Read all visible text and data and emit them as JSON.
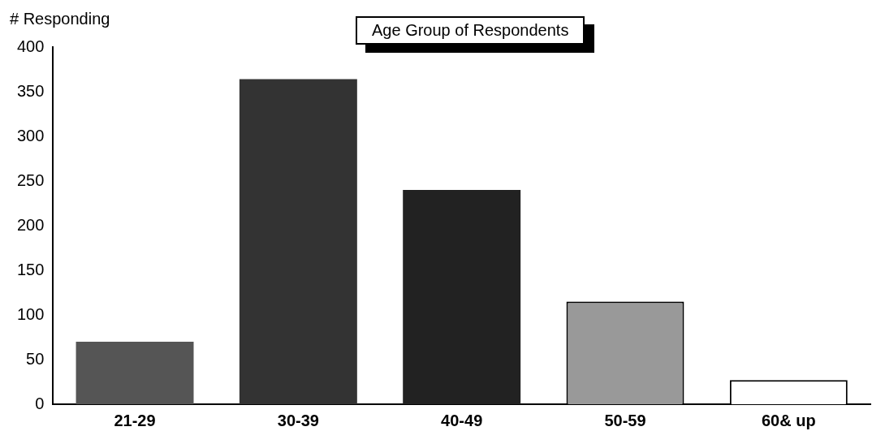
{
  "chart_data": {
    "type": "bar",
    "title": "Age Group of Respondents",
    "ylabel": "# Responding",
    "categories": [
      "21-29",
      "30-39",
      "40-49",
      "50-59",
      "60& up"
    ],
    "values": [
      70,
      364,
      240,
      115,
      27
    ],
    "colors": [
      "#555555",
      "#333333",
      "#222222",
      "#999999",
      "#ffffff"
    ],
    "ylim": [
      0,
      400
    ],
    "yticks": [
      0,
      50,
      100,
      150,
      200,
      250,
      300,
      350,
      400
    ],
    "grid": false,
    "legend": false
  }
}
